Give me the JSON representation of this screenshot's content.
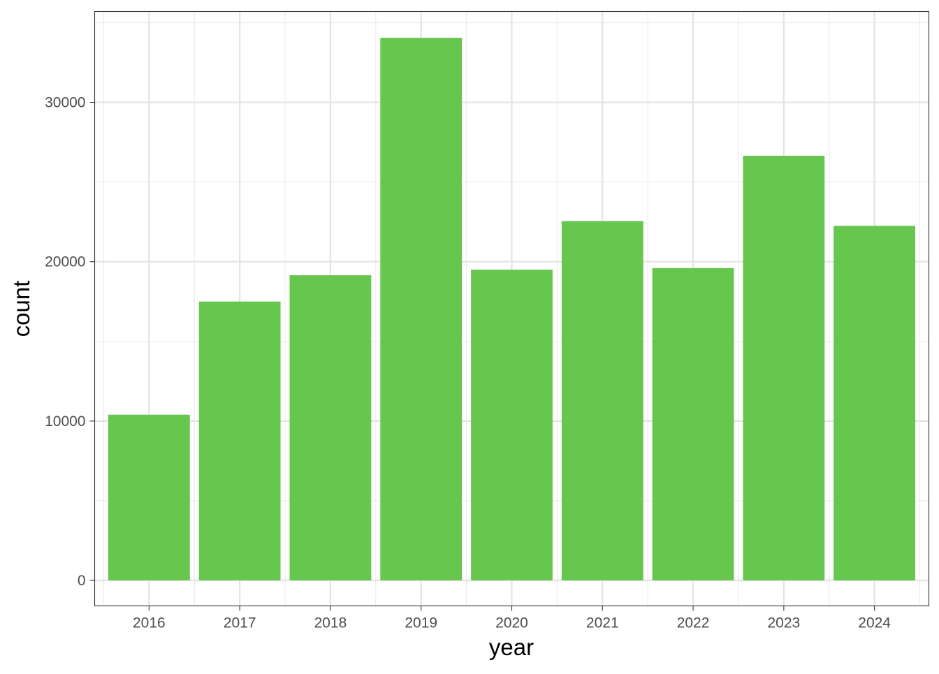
{
  "chart_data": {
    "type": "bar",
    "categories": [
      "2016",
      "2017",
      "2018",
      "2019",
      "2020",
      "2021",
      "2022",
      "2023",
      "2024"
    ],
    "values": [
      10400,
      17500,
      19150,
      34050,
      19500,
      22550,
      19600,
      26650,
      22250
    ],
    "xlabel": "year",
    "ylabel": "count",
    "ylim": [
      -1600,
      35700
    ],
    "yticks": [
      0,
      10000,
      20000,
      30000
    ],
    "ytick_labels": [
      "0",
      "10000",
      "20000",
      "30000"
    ],
    "grid": true,
    "bar_color": "#66C64E"
  }
}
